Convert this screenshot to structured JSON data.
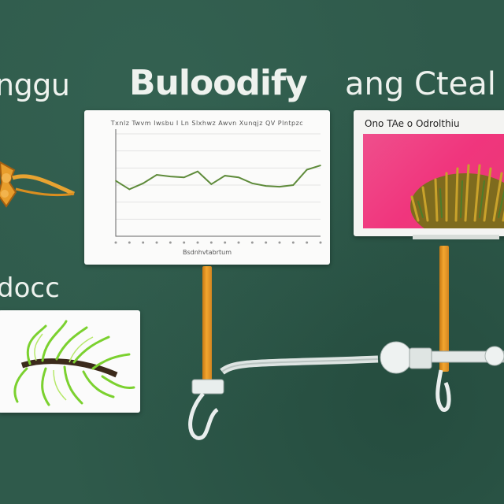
{
  "words": {
    "left": "nggu",
    "center": "Buloodify",
    "right": "ang Cteal",
    "small": "docc"
  },
  "chart_panel": {
    "title": "Txnlz Twvm Iwsbu I Ln Slxhwz Awvn Xunqjz QV Plntpzc",
    "xlabel": "Bsdnhvtabrtum"
  },
  "photo_panel": {
    "label": "Ono TAe o Odrolthiu"
  },
  "colors": {
    "background": "#2f5a4b",
    "line": "#5e8b3a",
    "pink": "#ef4f8c",
    "pole": "#f3a62f"
  },
  "chart_data": {
    "type": "line",
    "title": "",
    "xlabel": "",
    "ylabel": "",
    "x": [
      1,
      2,
      3,
      4,
      5,
      6,
      7,
      8,
      9,
      10,
      11,
      12,
      13,
      14,
      15,
      16
    ],
    "series": [
      {
        "values": [
          6.5,
          5.5,
          6.2,
          7.2,
          7.0,
          6.9,
          7.6,
          6.1,
          7.1,
          6.9,
          6.2,
          5.9,
          5.8,
          6.0,
          7.8,
          8.3
        ]
      }
    ],
    "ylim": [
      0,
      12
    ],
    "grid": true,
    "tick_labels_y": [
      "",
      "",
      "",
      "",
      "",
      ""
    ],
    "tick_labels_x": [
      "",
      "",
      "",
      "",
      "",
      "",
      "",
      "",
      "",
      "",
      "",
      "",
      "",
      "",
      "",
      ""
    ]
  }
}
